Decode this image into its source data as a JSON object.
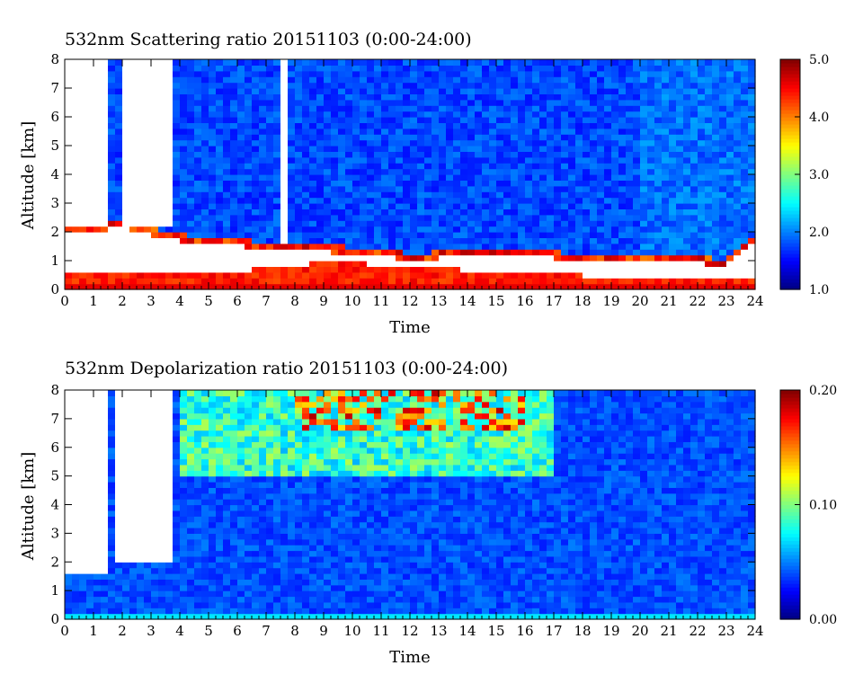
{
  "chart_data": [
    {
      "type": "heatmap",
      "title": "532nm Scattering ratio  20151103 (0:00-24:00)",
      "xlabel": "Time",
      "ylabel": "Altitude [km]",
      "xlim": [
        0,
        24
      ],
      "ylim": [
        0,
        8
      ],
      "x_ticks": [
        "0",
        "1",
        "2",
        "3",
        "4",
        "5",
        "6",
        "7",
        "8",
        "9",
        "10",
        "11",
        "12",
        "13",
        "14",
        "15",
        "16",
        "17",
        "18",
        "19",
        "20",
        "21",
        "22",
        "23",
        "24"
      ],
      "y_ticks": [
        "0",
        "1",
        "2",
        "3",
        "4",
        "5",
        "6",
        "7",
        "8"
      ],
      "colorbar": {
        "range": [
          1.0,
          5.0
        ],
        "labels": [
          "1.0",
          "2.0",
          "3.0",
          "4.0",
          "5.0"
        ],
        "colormap": "jet-like"
      },
      "background_value": 1.8,
      "cloud_base_profile": {
        "x": [
          0,
          1,
          1.5,
          2,
          3,
          3.7,
          5,
          7,
          8,
          10,
          11,
          12,
          14,
          16,
          18,
          20,
          22,
          23,
          24
        ],
        "y": [
          2.2,
          2.05,
          2.25,
          2.3,
          2.05,
          1.85,
          1.75,
          1.55,
          1.5,
          1.38,
          1.32,
          1.15,
          1.3,
          1.28,
          1.15,
          1.1,
          1.05,
          0.95,
          1.9
        ]
      },
      "cloud_base_value": 4.8,
      "no_data_regions": [
        {
          "x": [
            0.0,
            1.45
          ],
          "y": [
            2.2,
            8.0
          ]
        },
        {
          "x": [
            1.9,
            3.7
          ],
          "y": [
            2.2,
            8.0
          ]
        },
        {
          "x": [
            7.6,
            7.75
          ],
          "y": [
            1.6,
            8.0
          ]
        }
      ],
      "low_layer": {
        "x": [
          0,
          24
        ],
        "top": [
          0.55,
          0.6,
          0.65,
          0.95,
          0.85,
          0.6,
          0.5,
          0.45,
          0.35
        ],
        "value": 4.6
      }
    },
    {
      "type": "heatmap",
      "title": "532nm Depolarization ratio  20151103 (0:00-24:00)",
      "xlabel": "Time",
      "ylabel": "Altitude [km]",
      "xlim": [
        0,
        24
      ],
      "ylim": [
        0,
        8
      ],
      "x_ticks": [
        "0",
        "1",
        "2",
        "3",
        "4",
        "5",
        "6",
        "7",
        "8",
        "9",
        "10",
        "11",
        "12",
        "13",
        "14",
        "15",
        "16",
        "17",
        "18",
        "19",
        "20",
        "21",
        "22",
        "23",
        "24"
      ],
      "y_ticks": [
        "0",
        "1",
        "2",
        "3",
        "4",
        "5",
        "6",
        "7",
        "8"
      ],
      "colorbar": {
        "range": [
          0.0,
          0.2
        ],
        "labels": [
          "0.00",
          "0.10",
          "0.20"
        ],
        "colormap": "jet-like"
      },
      "background_value": 0.04,
      "upper_value": 0.08,
      "no_data_regions": [
        {
          "x": [
            0.0,
            1.4
          ],
          "y": [
            1.7,
            8.0
          ]
        },
        {
          "x": [
            1.65,
            3.7
          ],
          "y": [
            2.1,
            8.0
          ]
        }
      ],
      "speckle_value": 0.16
    }
  ]
}
